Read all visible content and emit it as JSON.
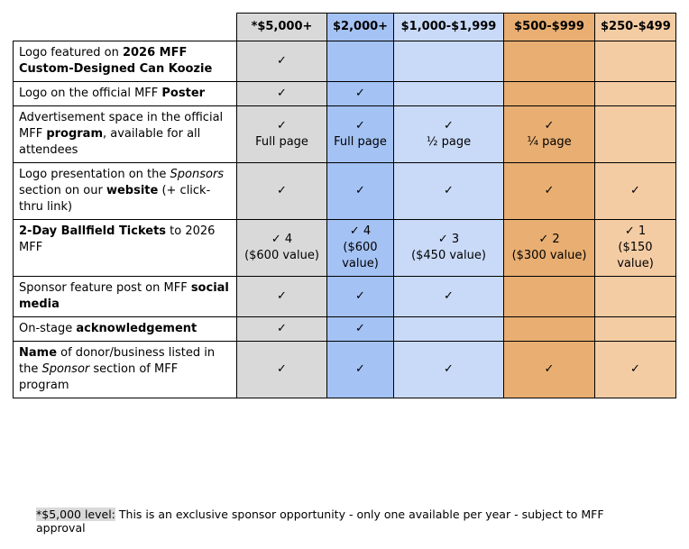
{
  "table": {
    "headers": [
      "*$5,000+",
      "$2,000+",
      "$1,000-$1,999",
      "$500-$999",
      "$250-$499"
    ],
    "column_colors": [
      "#d9d9d9",
      "#a4c2f4",
      "#c9daf8",
      "#e8ae72",
      "#f4cca4"
    ],
    "rows": [
      {
        "label": [
          {
            "text": "Logo featured on "
          },
          {
            "text": "2026 MFF Custom-Designed Can Koozie",
            "bold": true
          }
        ],
        "cells": [
          [
            "✓"
          ],
          [],
          [],
          [],
          []
        ]
      },
      {
        "label": [
          {
            "text": "Logo on the official MFF "
          },
          {
            "text": "Poster",
            "bold": true
          }
        ],
        "cells": [
          [
            "✓"
          ],
          [
            "✓"
          ],
          [],
          [],
          []
        ]
      },
      {
        "label": [
          {
            "text": "Advertisement space in the official MFF "
          },
          {
            "text": "program",
            "bold": true
          },
          {
            "text": ", available for all attendees"
          }
        ],
        "cells": [
          [
            "✓",
            "Full page"
          ],
          [
            "✓",
            "Full page"
          ],
          [
            "✓",
            "½ page"
          ],
          [
            "✓",
            "¼ page"
          ],
          []
        ]
      },
      {
        "label": [
          {
            "text": "Logo presentation on the "
          },
          {
            "text": "Sponsors",
            "italic": true
          },
          {
            "text": " section on our "
          },
          {
            "text": "website",
            "bold": true
          },
          {
            "text": " (+ click-thru link)"
          }
        ],
        "cells": [
          [
            "✓"
          ],
          [
            "✓"
          ],
          [
            "✓"
          ],
          [
            "✓"
          ],
          [
            "✓"
          ]
        ]
      },
      {
        "label": [
          {
            "text": "2-Day Ballfield Tickets",
            "bold": true
          },
          {
            "text": " to 2026 MFF"
          }
        ],
        "cells": [
          [
            "✓ 4",
            "($600 value)"
          ],
          [
            "✓ 4",
            "($600 value)"
          ],
          [
            "✓ 3",
            "($450 value)"
          ],
          [
            "✓ 2",
            "($300 value)"
          ],
          [
            "✓ 1",
            "($150 value)"
          ]
        ]
      },
      {
        "label": [
          {
            "text": "Sponsor feature post on MFF "
          },
          {
            "text": "social media",
            "bold": true
          }
        ],
        "cells": [
          [
            "✓"
          ],
          [
            "✓"
          ],
          [
            "✓"
          ],
          [],
          []
        ]
      },
      {
        "label": [
          {
            "text": "On-stage "
          },
          {
            "text": "acknowledgement",
            "bold": true
          }
        ],
        "cells": [
          [
            "✓"
          ],
          [
            "✓"
          ],
          [],
          [],
          []
        ]
      },
      {
        "label": [
          {
            "text": "Name",
            "bold": true
          },
          {
            "text": " of donor/business listed in the "
          },
          {
            "text": "Sponsor",
            "italic": true
          },
          {
            "text": " section of MFF program"
          }
        ],
        "cells": [
          [
            "✓"
          ],
          [
            "✓"
          ],
          [
            "✓"
          ],
          [
            "✓"
          ],
          [
            "✓"
          ]
        ]
      }
    ]
  },
  "footnote": [
    {
      "text": "*$5,000 level:",
      "highlight": true
    },
    {
      "text": " This is an exclusive sponsor opportunity - only one available per year - subject to MFF approval"
    }
  ]
}
